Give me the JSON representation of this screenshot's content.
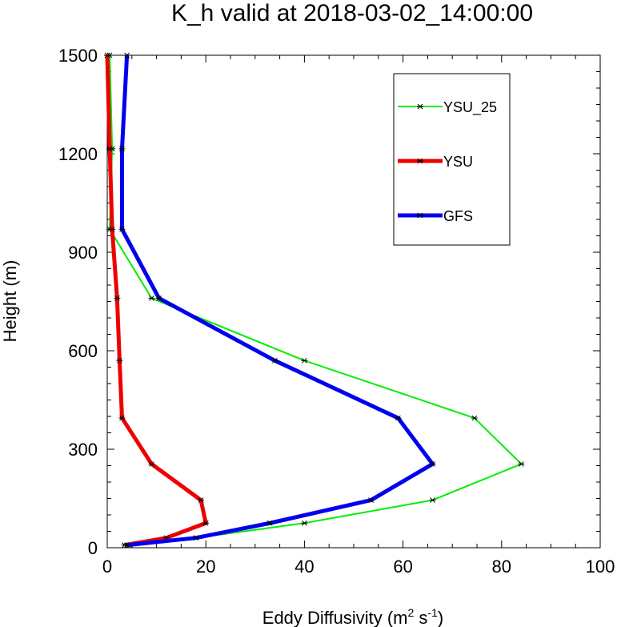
{
  "chart_data": {
    "type": "line",
    "title": "K_h valid at 2018-03-02_14:00:00",
    "xlabel": "Eddy Diffusivity (m",
    "xlabel_sup1": "2",
    "xlabel_mid": " s",
    "xlabel_sup2": "-1",
    "xlabel_end": ")",
    "ylabel": "Height (m)",
    "xlim": [
      0,
      100
    ],
    "ylim": [
      0,
      1500
    ],
    "xticks": [
      0,
      20,
      40,
      60,
      80,
      100
    ],
    "yticks": [
      0,
      300,
      600,
      900,
      1200,
      1500
    ],
    "legend_position": "top-right",
    "grid": false,
    "series": [
      {
        "name": "YSU_25",
        "color": "#00ee00",
        "width": 2,
        "x": [
          4.5,
          18,
          40,
          66,
          84,
          74.5,
          40,
          9,
          0.5,
          1,
          0.5
        ],
        "y": [
          8,
          30,
          75,
          145,
          255,
          395,
          570,
          760,
          970,
          1215,
          1500
        ]
      },
      {
        "name": "YSU",
        "color": "#ee0000",
        "width": 5,
        "x": [
          3.5,
          12,
          20,
          19,
          9,
          3,
          2.5,
          2,
          1,
          0.5,
          0
        ],
        "y": [
          8,
          30,
          75,
          145,
          255,
          395,
          570,
          760,
          970,
          1215,
          1500
        ]
      },
      {
        "name": "GFS",
        "color": "#0000ee",
        "width": 5,
        "x": [
          4,
          18,
          33,
          53.5,
          66,
          59,
          34,
          10.5,
          3,
          3,
          4
        ],
        "y": [
          8,
          30,
          75,
          145,
          255,
          395,
          570,
          760,
          970,
          1215,
          1500
        ]
      }
    ]
  }
}
